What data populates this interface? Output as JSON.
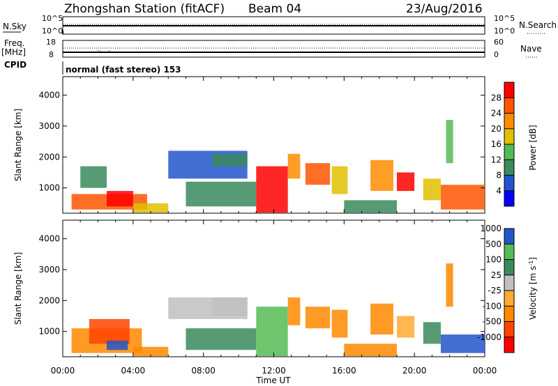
{
  "header": {
    "station": "Zhongshan Station (fitACF)",
    "beam": "Beam 04",
    "date": "23/Aug/2016"
  },
  "top_panel": {
    "left_label": "N.Sky",
    "right_label": "N.Search",
    "left_ticks": [
      "10^5",
      "10^0"
    ],
    "right_ticks": [
      "10^5",
      "10^0"
    ]
  },
  "freq_panel": {
    "left_label_1": "Freq.",
    "left_label_2": "[MHz]",
    "right_label": "Nave",
    "left_ticks": [
      "18",
      "8"
    ],
    "right_ticks": [
      "60",
      "0"
    ],
    "cpid_label": "CPID"
  },
  "mode_text": "normal (fast stereo) 153",
  "colors": {
    "power": [
      "#0000ff",
      "#2255cc",
      "#3a8a5c",
      "#55bb55",
      "#e0c000",
      "#ff8c00",
      "#ff5500",
      "#ff0000"
    ],
    "velocity": [
      "#ff0000",
      "#ff4400",
      "#ff8800",
      "#ffaa33",
      "#c0c0c0",
      "#3a8a5c",
      "#55bb55",
      "#2255cc"
    ]
  },
  "chart_data": [
    {
      "type": "heatmap",
      "name": "power",
      "ylabel": "Slant Range [km]",
      "y_ticks": [
        "1000",
        "2000",
        "3000",
        "4000"
      ],
      "ylim": [
        180,
        4600
      ],
      "colorbar_label": "Power [dB]",
      "colorbar_ticks": [
        "4",
        "8",
        "12",
        "16",
        "20",
        "24",
        "28"
      ],
      "cblim": [
        0,
        32
      ],
      "patches": [
        {
          "t": [
            0.5,
            4.8
          ],
          "r": [
            300,
            800
          ],
          "c": 6
        },
        {
          "t": [
            1.0,
            2.5
          ],
          "r": [
            1000,
            1700
          ],
          "c": 2
        },
        {
          "t": [
            2.5,
            4.0
          ],
          "r": [
            400,
            900
          ],
          "c": 7
        },
        {
          "t": [
            4.0,
            6.0
          ],
          "r": [
            200,
            500
          ],
          "c": 4
        },
        {
          "t": [
            6.0,
            10.5
          ],
          "r": [
            1300,
            2200
          ],
          "c": 1
        },
        {
          "t": [
            8.5,
            10.5
          ],
          "r": [
            1700,
            2100
          ],
          "c": 2
        },
        {
          "t": [
            7.0,
            11.0
          ],
          "r": [
            400,
            1200
          ],
          "c": 2
        },
        {
          "t": [
            11.0,
            12.8
          ],
          "r": [
            200,
            1700
          ],
          "c": 7
        },
        {
          "t": [
            12.8,
            13.5
          ],
          "r": [
            1300,
            2100
          ],
          "c": 5
        },
        {
          "t": [
            13.8,
            15.2
          ],
          "r": [
            1100,
            1800
          ],
          "c": 6
        },
        {
          "t": [
            15.3,
            16.2
          ],
          "r": [
            800,
            1700
          ],
          "c": 4
        },
        {
          "t": [
            16.0,
            19.0
          ],
          "r": [
            200,
            600
          ],
          "c": 2
        },
        {
          "t": [
            17.5,
            18.8
          ],
          "r": [
            900,
            1900
          ],
          "c": 5
        },
        {
          "t": [
            19.0,
            20.0
          ],
          "r": [
            900,
            1500
          ],
          "c": 7
        },
        {
          "t": [
            20.5,
            21.5
          ],
          "r": [
            600,
            1300
          ],
          "c": 4
        },
        {
          "t": [
            21.5,
            24.0
          ],
          "r": [
            300,
            1100
          ],
          "c": 6
        },
        {
          "t": [
            21.8,
            22.2
          ],
          "r": [
            1800,
            3200
          ],
          "c": 3
        }
      ]
    },
    {
      "type": "heatmap",
      "name": "velocity",
      "ylabel": "Slant Range [km]",
      "y_ticks": [
        "1000",
        "2000",
        "3000",
        "4000"
      ],
      "ylim": [
        180,
        4600
      ],
      "colorbar_label": "Velocity [m s",
      "colorbar_label_sup": "-1",
      "colorbar_label_end": "]",
      "colorbar_ticks": [
        "-1000",
        "-500",
        "-100",
        "-25",
        "25",
        "100",
        "500",
        "1000"
      ],
      "cblim": [
        0,
        8
      ],
      "x_ticks": [
        "00:00",
        "04:00",
        "08:00",
        "12:00",
        "16:00",
        "20:00",
        "00:00"
      ],
      "xlabel": "Time UT",
      "xlim": [
        0,
        24
      ],
      "patches": [
        {
          "t": [
            0.5,
            4.5
          ],
          "r": [
            300,
            1100
          ],
          "c": 2
        },
        {
          "t": [
            1.5,
            3.8
          ],
          "r": [
            600,
            1400
          ],
          "c": 1
        },
        {
          "t": [
            2.5,
            3.7
          ],
          "r": [
            400,
            700
          ],
          "c": 7
        },
        {
          "t": [
            4.0,
            6.0
          ],
          "r": [
            200,
            500
          ],
          "c": 2
        },
        {
          "t": [
            6.0,
            10.5
          ],
          "r": [
            1400,
            2100
          ],
          "c": 4
        },
        {
          "t": [
            8.5,
            10.5
          ],
          "r": [
            1500,
            2100
          ],
          "c": 4
        },
        {
          "t": [
            7.0,
            11.0
          ],
          "r": [
            400,
            1100
          ],
          "c": 5
        },
        {
          "t": [
            11.0,
            12.8
          ],
          "r": [
            200,
            1800
          ],
          "c": 6
        },
        {
          "t": [
            12.8,
            13.5
          ],
          "r": [
            1200,
            2100
          ],
          "c": 2
        },
        {
          "t": [
            13.8,
            15.2
          ],
          "r": [
            1100,
            1800
          ],
          "c": 2
        },
        {
          "t": [
            15.3,
            16.2
          ],
          "r": [
            800,
            1700
          ],
          "c": 2
        },
        {
          "t": [
            16.0,
            19.0
          ],
          "r": [
            200,
            600
          ],
          "c": 2
        },
        {
          "t": [
            17.5,
            18.8
          ],
          "r": [
            900,
            1900
          ],
          "c": 2
        },
        {
          "t": [
            19.0,
            20.0
          ],
          "r": [
            800,
            1500
          ],
          "c": 3
        },
        {
          "t": [
            20.5,
            21.5
          ],
          "r": [
            600,
            1300
          ],
          "c": 5
        },
        {
          "t": [
            21.5,
            24.0
          ],
          "r": [
            300,
            900
          ],
          "c": 7
        },
        {
          "t": [
            21.8,
            22.2
          ],
          "r": [
            1800,
            3200
          ],
          "c": 2
        }
      ]
    }
  ]
}
